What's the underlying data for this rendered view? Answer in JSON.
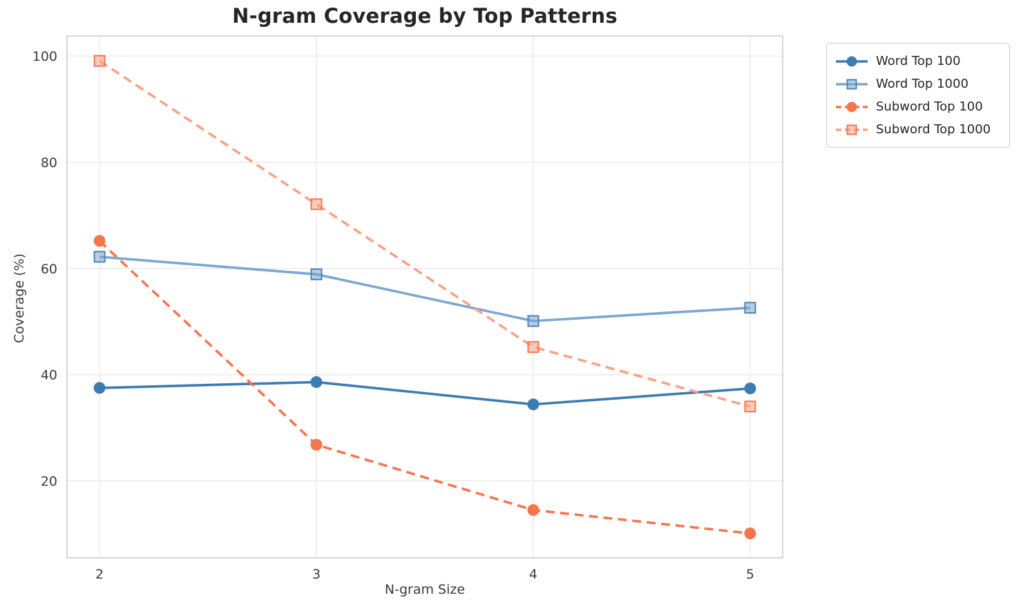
{
  "chart_data": {
    "type": "line",
    "title": "N-gram Coverage by Top Patterns",
    "xlabel": "N-gram Size",
    "ylabel": "Coverage (%)",
    "x": [
      2,
      3,
      4,
      5
    ],
    "xticks": [
      "2",
      "3",
      "4",
      "5"
    ],
    "yticks": [
      20,
      40,
      60,
      80,
      100
    ],
    "xlim": [
      1.85,
      5.15
    ],
    "ylim": [
      5.5,
      103.8
    ],
    "grid": true,
    "legend_position": "outside-top-right",
    "series": [
      {
        "name": "Word Top 100",
        "values": [
          37.5,
          38.6,
          34.4,
          37.4
        ],
        "color": "#3d7cb0",
        "edge_color": "#3d7cb0",
        "marker": "circle",
        "line_style": "solid"
      },
      {
        "name": "Word Top 1000",
        "values": [
          62.2,
          58.9,
          50.1,
          52.6
        ],
        "color": "#7ba7cf",
        "edge_color": "#4d83b3",
        "marker": "square",
        "line_style": "solid"
      },
      {
        "name": "Subword Top 100",
        "values": [
          65.2,
          26.8,
          14.5,
          10.1
        ],
        "color": "#f4764e",
        "edge_color": "#f4764e",
        "marker": "circle",
        "line_style": "dashed"
      },
      {
        "name": "Subword Top 1000",
        "values": [
          99.1,
          72.1,
          45.2,
          34.0
        ],
        "color": "#f9a286",
        "edge_color": "#f4764e",
        "marker": "square",
        "line_style": "dashed"
      }
    ]
  }
}
